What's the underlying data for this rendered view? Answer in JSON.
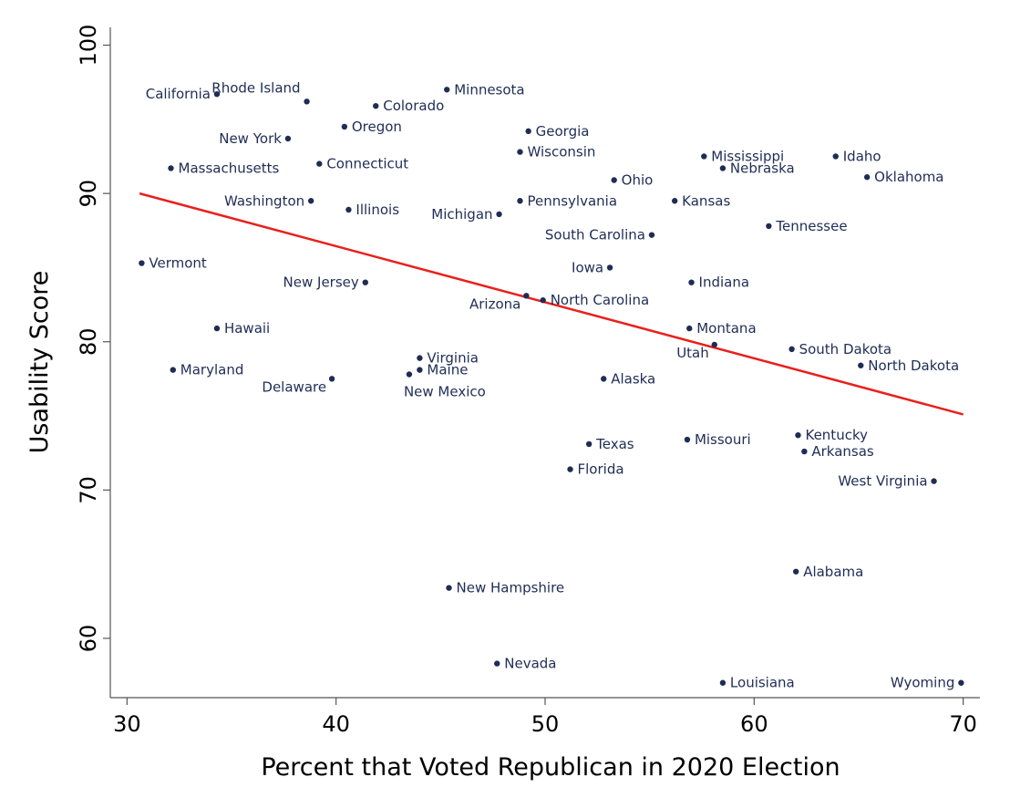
{
  "chart_data": {
    "type": "scatter",
    "xlabel": "Percent that Voted Republican in 2020 Election",
    "ylabel": "Usability Score",
    "xlim": [
      29.2,
      70.8
    ],
    "ylim": [
      56,
      101.2
    ],
    "xticks": [
      30,
      40,
      50,
      60,
      70
    ],
    "yticks": [
      60,
      70,
      80,
      90,
      100
    ],
    "grid": false,
    "legend": "none",
    "point_color": "#1f2d55",
    "trendline": {
      "x": [
        30.6,
        70.0
      ],
      "y": [
        90.0,
        75.1
      ],
      "color": "#e8201c"
    },
    "points": [
      {
        "label": "California",
        "x": 34.3,
        "y": 96.7,
        "pos": "left"
      },
      {
        "label": "Rhode Island",
        "x": 38.6,
        "y": 96.2,
        "pos": "left-up"
      },
      {
        "label": "Colorado",
        "x": 41.9,
        "y": 95.9,
        "pos": "right"
      },
      {
        "label": "Minnesota",
        "x": 45.3,
        "y": 97.0,
        "pos": "right"
      },
      {
        "label": "Oregon",
        "x": 40.4,
        "y": 94.5,
        "pos": "right"
      },
      {
        "label": "New York",
        "x": 37.7,
        "y": 93.7,
        "pos": "left"
      },
      {
        "label": "Georgia",
        "x": 49.2,
        "y": 94.2,
        "pos": "right"
      },
      {
        "label": "Wisconsin",
        "x": 48.8,
        "y": 92.8,
        "pos": "right"
      },
      {
        "label": "Massachusetts",
        "x": 32.1,
        "y": 91.7,
        "pos": "right"
      },
      {
        "label": "Connecticut",
        "x": 39.2,
        "y": 92.0,
        "pos": "right"
      },
      {
        "label": "Mississippi",
        "x": 57.6,
        "y": 92.5,
        "pos": "right"
      },
      {
        "label": "Idaho",
        "x": 63.9,
        "y": 92.5,
        "pos": "right"
      },
      {
        "label": "Nebraska",
        "x": 58.5,
        "y": 91.7,
        "pos": "right"
      },
      {
        "label": "Oklahoma",
        "x": 65.4,
        "y": 91.1,
        "pos": "right"
      },
      {
        "label": "Ohio",
        "x": 53.3,
        "y": 90.9,
        "pos": "right"
      },
      {
        "label": "Washington",
        "x": 38.8,
        "y": 89.5,
        "pos": "left"
      },
      {
        "label": "Illinois",
        "x": 40.6,
        "y": 88.9,
        "pos": "right"
      },
      {
        "label": "Pennsylvania",
        "x": 48.8,
        "y": 89.5,
        "pos": "right"
      },
      {
        "label": "Kansas",
        "x": 56.2,
        "y": 89.5,
        "pos": "right"
      },
      {
        "label": "Michigan",
        "x": 47.8,
        "y": 88.6,
        "pos": "left"
      },
      {
        "label": "Tennessee",
        "x": 60.7,
        "y": 87.8,
        "pos": "right"
      },
      {
        "label": "South Carolina",
        "x": 55.1,
        "y": 87.2,
        "pos": "left"
      },
      {
        "label": "Vermont",
        "x": 30.7,
        "y": 85.3,
        "pos": "right"
      },
      {
        "label": "Iowa",
        "x": 53.1,
        "y": 85.0,
        "pos": "left"
      },
      {
        "label": "New Jersey",
        "x": 41.4,
        "y": 84.0,
        "pos": "left"
      },
      {
        "label": "Indiana",
        "x": 57.0,
        "y": 84.0,
        "pos": "right"
      },
      {
        "label": "Arizona",
        "x": 49.1,
        "y": 83.1,
        "pos": "left-down"
      },
      {
        "label": "North Carolina",
        "x": 49.9,
        "y": 82.8,
        "pos": "right"
      },
      {
        "label": "Hawaii",
        "x": 34.3,
        "y": 80.9,
        "pos": "right"
      },
      {
        "label": "Montana",
        "x": 56.9,
        "y": 80.9,
        "pos": "right"
      },
      {
        "label": "Utah",
        "x": 58.1,
        "y": 79.8,
        "pos": "left-down"
      },
      {
        "label": "South Dakota",
        "x": 61.8,
        "y": 79.5,
        "pos": "right"
      },
      {
        "label": "Virginia",
        "x": 44.0,
        "y": 78.9,
        "pos": "right"
      },
      {
        "label": "Maine",
        "x": 44.0,
        "y": 78.1,
        "pos": "right"
      },
      {
        "label": "New Mexico",
        "x": 43.5,
        "y": 77.8,
        "pos": "below"
      },
      {
        "label": "Maryland",
        "x": 32.2,
        "y": 78.1,
        "pos": "right"
      },
      {
        "label": "North Dakota",
        "x": 65.1,
        "y": 78.4,
        "pos": "right"
      },
      {
        "label": "Delaware",
        "x": 39.8,
        "y": 77.5,
        "pos": "left-down"
      },
      {
        "label": "Alaska",
        "x": 52.8,
        "y": 77.5,
        "pos": "right"
      },
      {
        "label": "Kentucky",
        "x": 62.1,
        "y": 73.7,
        "pos": "right"
      },
      {
        "label": "Missouri",
        "x": 56.8,
        "y": 73.4,
        "pos": "right"
      },
      {
        "label": "Texas",
        "x": 52.1,
        "y": 73.1,
        "pos": "right"
      },
      {
        "label": "Arkansas",
        "x": 62.4,
        "y": 72.6,
        "pos": "right"
      },
      {
        "label": "Florida",
        "x": 51.2,
        "y": 71.4,
        "pos": "right"
      },
      {
        "label": "West Virginia",
        "x": 68.6,
        "y": 70.6,
        "pos": "left"
      },
      {
        "label": "Alabama",
        "x": 62.0,
        "y": 64.5,
        "pos": "right"
      },
      {
        "label": "New Hampshire",
        "x": 45.4,
        "y": 63.4,
        "pos": "right"
      },
      {
        "label": "Nevada",
        "x": 47.7,
        "y": 58.3,
        "pos": "right"
      },
      {
        "label": "Louisiana",
        "x": 58.5,
        "y": 57.0,
        "pos": "right"
      },
      {
        "label": "Wyoming",
        "x": 69.9,
        "y": 57.0,
        "pos": "left"
      }
    ]
  }
}
